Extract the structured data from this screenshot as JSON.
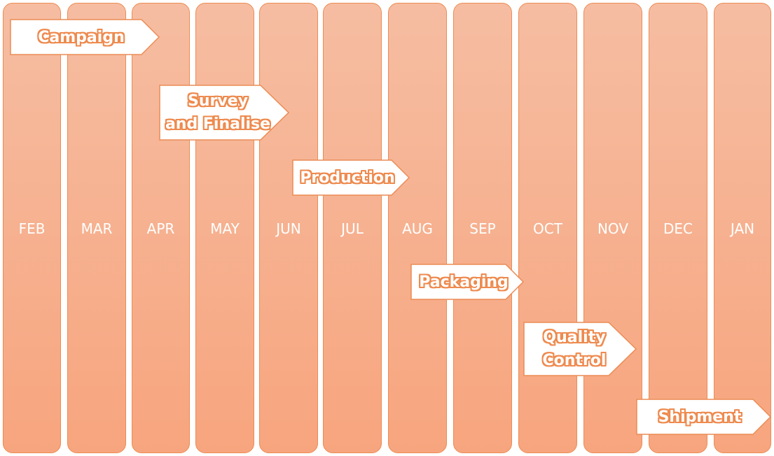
{
  "colors": {
    "column_top": "#f6bda2",
    "column_bottom": "#f7a57e",
    "column_border": "#ec8c55",
    "arrow_fill": "#ffffff",
    "arrow_border": "#ec8c55",
    "text_outline": "#ee8a4e"
  },
  "months": [
    {
      "label": "FEB"
    },
    {
      "label": "MAR"
    },
    {
      "label": "APR"
    },
    {
      "label": "MAY"
    },
    {
      "label": "JUN"
    },
    {
      "label": "JUL"
    },
    {
      "label": "AUG"
    },
    {
      "label": "SEP"
    },
    {
      "label": "OCT"
    },
    {
      "label": "NOV"
    },
    {
      "label": "DEC"
    },
    {
      "label": "JAN"
    }
  ],
  "phases": [
    {
      "label": "Campaign"
    },
    {
      "label": "Survey\nand Finalise"
    },
    {
      "label": "Production"
    },
    {
      "label": "Packaging"
    },
    {
      "label": "Quality\nControl"
    },
    {
      "label": "Shipment"
    }
  ]
}
